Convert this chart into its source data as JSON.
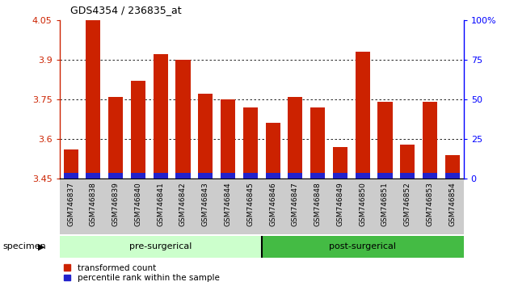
{
  "title": "GDS4354 / 236835_at",
  "categories": [
    "GSM746837",
    "GSM746838",
    "GSM746839",
    "GSM746840",
    "GSM746841",
    "GSM746842",
    "GSM746843",
    "GSM746844",
    "GSM746845",
    "GSM746846",
    "GSM746847",
    "GSM746848",
    "GSM746849",
    "GSM746850",
    "GSM746851",
    "GSM746852",
    "GSM746853",
    "GSM746854"
  ],
  "red_values": [
    3.56,
    4.05,
    3.76,
    3.82,
    3.92,
    3.9,
    3.77,
    3.75,
    3.72,
    3.66,
    3.76,
    3.72,
    3.57,
    3.93,
    3.74,
    3.58,
    3.74,
    3.54
  ],
  "blue_percentiles": [
    2,
    12,
    8,
    8,
    12,
    8,
    8,
    8,
    10,
    5,
    8,
    8,
    8,
    12,
    8,
    8,
    8,
    5
  ],
  "ymin": 3.45,
  "ymax": 4.05,
  "yticks": [
    3.45,
    3.6,
    3.75,
    3.9,
    4.05
  ],
  "ytick_labels": [
    "3.45",
    "3.6",
    "3.75",
    "3.9",
    "4.05"
  ],
  "right_yticks": [
    0,
    25,
    50,
    75,
    100
  ],
  "right_ytick_labels": [
    "0",
    "25",
    "50",
    "75",
    "100%"
  ],
  "bar_color": "#cc2200",
  "blue_color": "#2222cc",
  "pre_surgical_count": 9,
  "post_surgical_count": 9,
  "pre_label": "pre-surgerical",
  "post_label": "post-surgerical",
  "pre_color": "#ccffcc",
  "post_color": "#44bb44",
  "specimen_label": "specimen",
  "legend_red": "transformed count",
  "legend_blue": "percentile rank within the sample",
  "bar_width": 0.65,
  "grid_yticks": [
    3.6,
    3.75,
    3.9
  ]
}
